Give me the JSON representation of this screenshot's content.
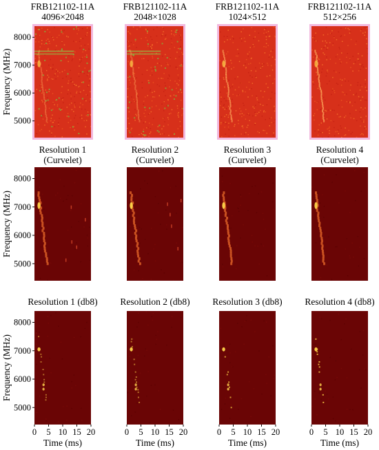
{
  "chart_data": {
    "type": "heatmap",
    "layout": "3x4 grid of frequency-time spectrogram panels",
    "ylabel": "Frequency (MHz)",
    "xlabel": "Time (ms)",
    "yticks": [
      5000,
      6000,
      7000,
      8000
    ],
    "xticks": [
      0,
      5,
      10,
      15,
      20
    ],
    "ylim": [
      4400,
      8400
    ],
    "xlim": [
      0,
      20
    ],
    "rows": [
      {
        "row_id": "original",
        "background": "#d7301a",
        "frame": "#f2b8de",
        "panels": [
          {
            "title_line1": "FRB121102-11A",
            "title_line2": "4096×2048"
          },
          {
            "title_line1": "FRB121102-11A",
            "title_line2": "2048×1028"
          },
          {
            "title_line1": "FRB121102-11A",
            "title_line2": "1024×512"
          },
          {
            "title_line1": "FRB121102-11A",
            "title_line2": "512×256"
          }
        ]
      },
      {
        "row_id": "curvelet",
        "background": "#6a0505",
        "frame": "",
        "panels": [
          {
            "title_line1": "Resolution 1",
            "title_line2": "(Curvelet)"
          },
          {
            "title_line1": "Resolution 2",
            "title_line2": "(Curvelet)"
          },
          {
            "title_line1": "Resolution 3",
            "title_line2": "(Curvelet)"
          },
          {
            "title_line1": "Resolution 4",
            "title_line2": "(Curvelet)"
          }
        ]
      },
      {
        "row_id": "db8",
        "background": "#6a0505",
        "frame": "",
        "panels": [
          {
            "title_line1": "Resolution 1 (db8)",
            "title_line2": ""
          },
          {
            "title_line1": "Resolution 2 (db8)",
            "title_line2": ""
          },
          {
            "title_line1": "Resolution 3 (db8)",
            "title_line2": ""
          },
          {
            "title_line1": "Resolution 4 (db8)",
            "title_line2": ""
          }
        ]
      }
    ],
    "burst_track": {
      "description": "bright dispersed signal drifting from high frequency at early time to lower frequency at later time",
      "start": {
        "time_ms": 1.5,
        "freq_mhz": 7500
      },
      "end": {
        "time_ms": 4.5,
        "freq_mhz": 5000
      },
      "peak": {
        "time_ms": 1.6,
        "freq_mhz": 7050
      },
      "color": "#ffd54a"
    },
    "rfi_lines_mhz": [
      7500,
      7400
    ]
  }
}
